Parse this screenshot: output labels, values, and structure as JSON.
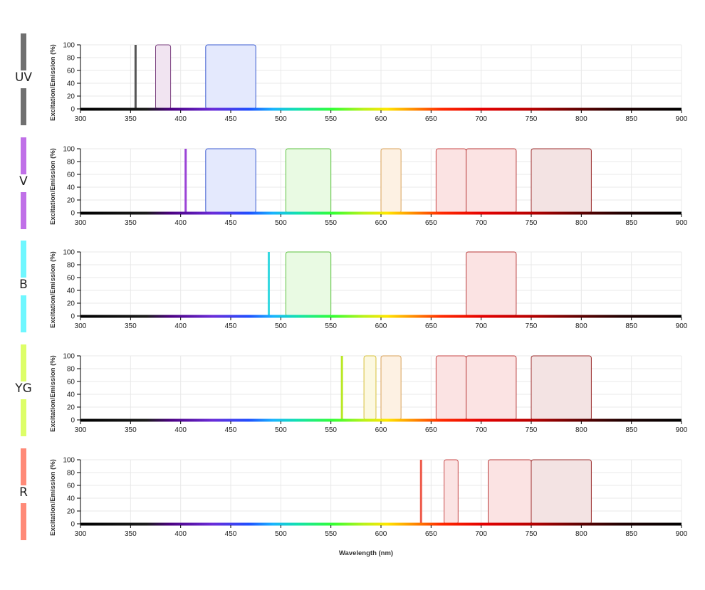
{
  "chart_data": {
    "type": "area",
    "xlabel": "Wavelength (nm)",
    "xlim": [
      300,
      900
    ],
    "xticks": [
      300,
      350,
      400,
      450,
      500,
      550,
      600,
      650,
      700,
      750,
      800,
      850,
      900
    ],
    "yticks": [
      0,
      20,
      40,
      60,
      80,
      100
    ],
    "panels": [
      {
        "laser": "UV",
        "laser_color": "#707070",
        "ylabel": "Excitation/Emission (%)",
        "ylim": [
          0,
          100
        ],
        "excitation_nm": 355,
        "excitation_color": "#555555",
        "filters": [
          {
            "start": 375,
            "end": 390,
            "value": 100,
            "stroke": "#7a3f7e",
            "fill": "#f1e4f1"
          },
          {
            "start": 425,
            "end": 475,
            "value": 100,
            "stroke": "#3b5bd1",
            "fill": "#e4e9fd"
          }
        ]
      },
      {
        "laser": "V",
        "laser_color": "#c070e8",
        "ylabel": "Excitation/Emission (%)",
        "ylim": [
          0,
          100
        ],
        "excitation_nm": 405,
        "excitation_color": "#9b44d6",
        "filters": [
          {
            "start": 425,
            "end": 475,
            "value": 100,
            "stroke": "#3b5bd1",
            "fill": "#e4e9fd"
          },
          {
            "start": 505,
            "end": 550,
            "value": 100,
            "stroke": "#5cc23f",
            "fill": "#e9fae3"
          },
          {
            "start": 600,
            "end": 620,
            "value": 100,
            "stroke": "#d9a25a",
            "fill": "#fdf1e3"
          },
          {
            "start": 655,
            "end": 685,
            "value": 100,
            "stroke": "#c94a4a",
            "fill": "#fbe3e3"
          },
          {
            "start": 685,
            "end": 735,
            "value": 100,
            "stroke": "#b83a3a",
            "fill": "#fbe3e3"
          },
          {
            "start": 750,
            "end": 810,
            "value": 100,
            "stroke": "#9c2f2f",
            "fill": "#f3e3e3"
          }
        ]
      },
      {
        "laser": "B",
        "laser_color": "#6ff7ff",
        "ylabel": "Excitation/Emission (%)",
        "ylim": [
          0,
          100
        ],
        "excitation_nm": 488,
        "excitation_color": "#35d8e0",
        "filters": [
          {
            "start": 505,
            "end": 550,
            "value": 100,
            "stroke": "#5cc23f",
            "fill": "#e9fae3"
          },
          {
            "start": 685,
            "end": 735,
            "value": 100,
            "stroke": "#b83a3a",
            "fill": "#fbe3e3"
          }
        ]
      },
      {
        "laser": "YG",
        "laser_color": "#ddfe68",
        "ylabel": "Excitation/Emission (%)",
        "ylim": [
          0,
          100
        ],
        "excitation_nm": 561,
        "excitation_color": "#b9e825",
        "filters": [
          {
            "start": 583,
            "end": 595,
            "value": 100,
            "stroke": "#d6c13b",
            "fill": "#fcf8e0"
          },
          {
            "start": 600,
            "end": 620,
            "value": 100,
            "stroke": "#d9a25a",
            "fill": "#fdf1e3"
          },
          {
            "start": 655,
            "end": 685,
            "value": 100,
            "stroke": "#c94a4a",
            "fill": "#fbe3e3"
          },
          {
            "start": 685,
            "end": 735,
            "value": 100,
            "stroke": "#b83a3a",
            "fill": "#fbe3e3"
          },
          {
            "start": 750,
            "end": 810,
            "value": 100,
            "stroke": "#9c2f2f",
            "fill": "#f3e3e3"
          }
        ]
      },
      {
        "laser": "R",
        "laser_color": "#ff8a78",
        "ylabel": "Excitation/Emission (%)",
        "ylim": [
          0,
          100
        ],
        "excitation_nm": 640,
        "excitation_color": "#ee5a4a",
        "filters": [
          {
            "start": 663,
            "end": 677,
            "value": 100,
            "stroke": "#c94a4a",
            "fill": "#fbe3e3"
          },
          {
            "start": 707,
            "end": 750,
            "value": 100,
            "stroke": "#b83a3a",
            "fill": "#fbe3e3"
          },
          {
            "start": 750,
            "end": 810,
            "value": 100,
            "stroke": "#9c2f2f",
            "fill": "#f3e3e3"
          }
        ]
      }
    ]
  }
}
